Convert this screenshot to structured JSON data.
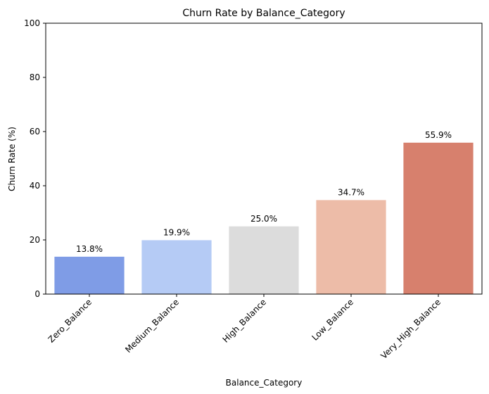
{
  "chart_data": {
    "type": "bar",
    "title": "Churn Rate by Balance_Category",
    "xlabel": "Balance_Category",
    "ylabel": "Churn Rate (%)",
    "ylim": [
      0,
      100
    ],
    "yticks": [
      "0",
      "20",
      "40",
      "60",
      "80",
      "100"
    ],
    "grid": false,
    "categories": [
      "Zero_Balance",
      "Medium_Balance",
      "High_Balance",
      "Low_Balance",
      "Very_High_Balance"
    ],
    "values": [
      13.8,
      19.9,
      25.0,
      34.7,
      55.9
    ],
    "data_labels": [
      "13.8%",
      "19.9%",
      "25.0%",
      "34.7%",
      "55.9%"
    ],
    "colors": [
      "#7f9ce6",
      "#b5cbf5",
      "#dcdcdc",
      "#edbca8",
      "#d7806d"
    ],
    "x_tick_rotation": "45 degrees"
  }
}
